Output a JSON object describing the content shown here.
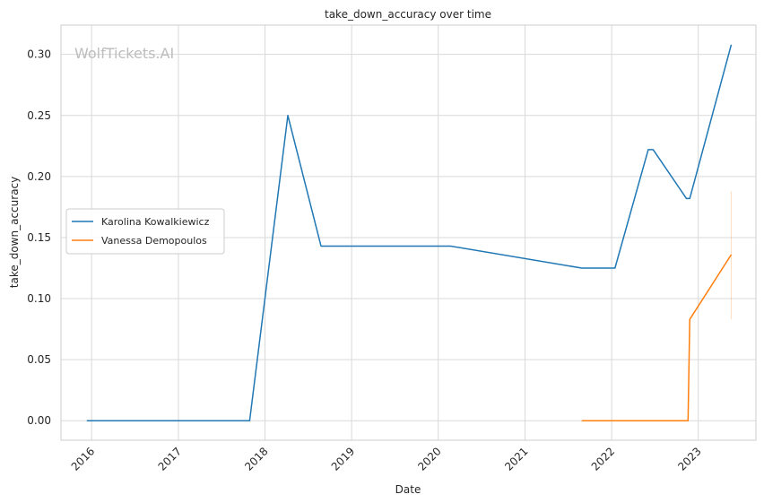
{
  "chart_data": {
    "type": "line",
    "title": "take_down_accuracy over time",
    "xlabel": "Date",
    "ylabel": "take_down_accuracy",
    "watermark": "WolfTickets.AI",
    "x_ticks": [
      "2016",
      "2017",
      "2018",
      "2019",
      "2020",
      "2021",
      "2022",
      "2023"
    ],
    "y_ticks": [
      "0.00",
      "0.05",
      "0.10",
      "0.15",
      "0.20",
      "0.25",
      "0.30"
    ],
    "ylim": [
      -0.016,
      0.324
    ],
    "xlim": [
      "2015-08-25",
      "2023-09-01"
    ],
    "grid": true,
    "legend_position": "center-left",
    "series": [
      {
        "name": "Karolina Kowalkiewicz",
        "color": "#1f77b4",
        "points": [
          {
            "x": "2015-12-12",
            "y": 0.0
          },
          {
            "x": "2017-10-28",
            "y": 0.0
          },
          {
            "x": "2018-04-07",
            "y": 0.25
          },
          {
            "x": "2018-08-25",
            "y": 0.143
          },
          {
            "x": "2020-02-22",
            "y": 0.143
          },
          {
            "x": "2021-08-28",
            "y": 0.125
          },
          {
            "x": "2022-01-15",
            "y": 0.125
          },
          {
            "x": "2022-06-04",
            "y": 0.222
          },
          {
            "x": "2022-06-25",
            "y": 0.222
          },
          {
            "x": "2022-11-12",
            "y": 0.182
          },
          {
            "x": "2022-11-26",
            "y": 0.182
          },
          {
            "x": "2023-05-20",
            "y": 0.308
          }
        ]
      },
      {
        "name": "Vanessa Demopoulos",
        "color": "#ff7f0e",
        "points": [
          {
            "x": "2021-08-28",
            "y": 0.0
          },
          {
            "x": "2022-11-19",
            "y": 0.0
          },
          {
            "x": "2022-11-26",
            "y": 0.083
          },
          {
            "x": "2023-05-20",
            "y": 0.136
          }
        ],
        "error_band": {
          "x": "2023-05-20",
          "low": 0.083,
          "high": 0.188
        }
      }
    ]
  }
}
